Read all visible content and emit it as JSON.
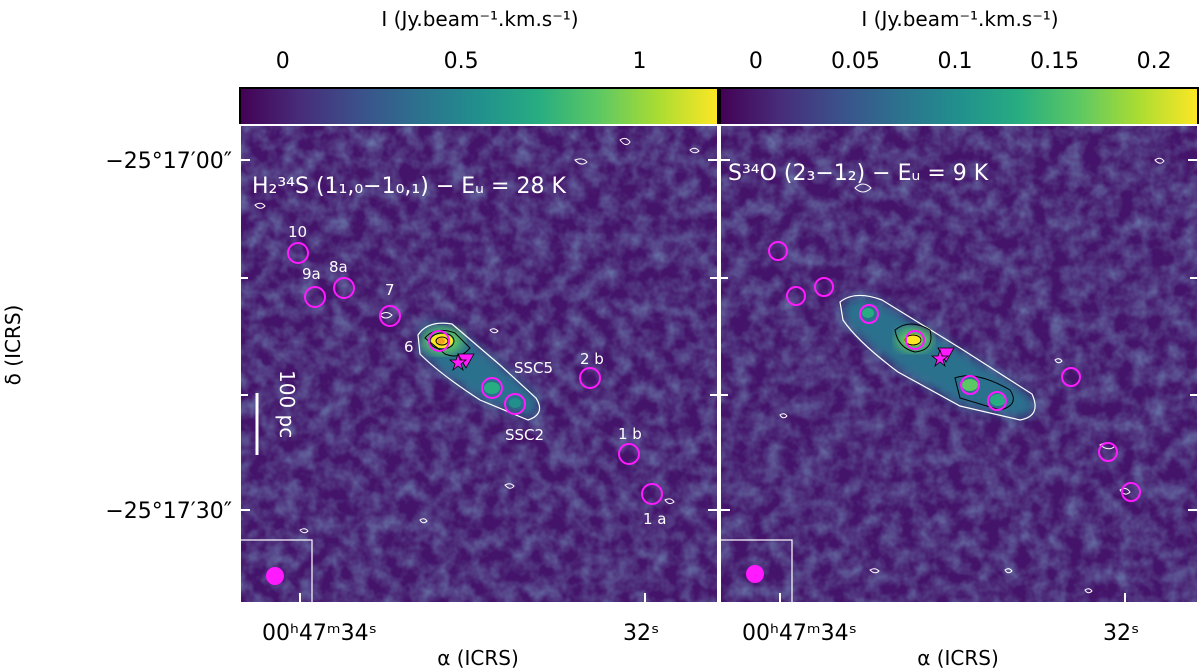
{
  "colormap": [
    "#440154",
    "#472c7a",
    "#3b518b",
    "#2c718e",
    "#21908d",
    "#27ad81",
    "#5cc863",
    "#aadc32",
    "#fde725"
  ],
  "colors": {
    "marker": "#ff1aff",
    "contour_white": "#ffffff",
    "contour_black": "#000000"
  },
  "y_axis": {
    "label": "δ (ICRS)",
    "ticks": [
      "−25°17′00″",
      "−25°17′30″"
    ]
  },
  "panels": [
    {
      "id": "h2-34s",
      "colorbar": {
        "label": "I (Jy.beam⁻¹.km.s⁻¹)",
        "ticks": [
          "0",
          "0.5",
          "1"
        ],
        "range": [
          -0.12,
          1.22
        ]
      },
      "line_title": {
        "species": "H₂³⁴S",
        "transition": "(1₁,₀−1₀,₁)",
        "energy": "− Eᵤ = 28 K"
      },
      "x_ticks": [
        "00ʰ47ᵐ34ˢ",
        "32ˢ"
      ],
      "x_label": "α (ICRS)",
      "scale_bar": "100 pc",
      "labels": [
        "10",
        "9a",
        "8a",
        "7",
        "6",
        "SSC5",
        "SSC2",
        "2 b",
        "1 b",
        "1 a"
      ]
    },
    {
      "id": "s-34o",
      "colorbar": {
        "label": "I (Jy.beam⁻¹.km.s⁻¹)",
        "ticks": [
          "0",
          "0.05",
          "0.1",
          "0.15",
          "0.2"
        ],
        "range": [
          -0.018,
          0.222
        ]
      },
      "line_title": {
        "species": "S³⁴O",
        "transition": "(2₃−1₂)",
        "energy": "− Eᵤ = 9 K"
      },
      "x_ticks": [
        "00ʰ47ᵐ34ˢ",
        "32ˢ"
      ],
      "x_label": "α (ICRS)",
      "labels": []
    }
  ]
}
